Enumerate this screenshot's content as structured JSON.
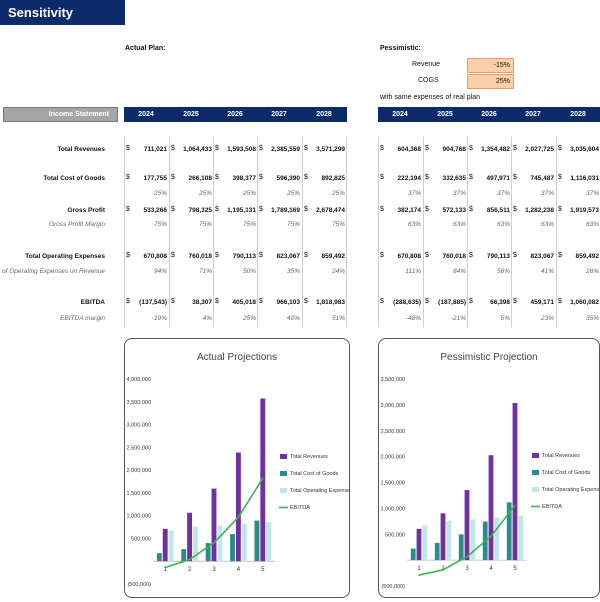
{
  "title": "Sensitivity Analysis",
  "actual_plan_label": "Actual Plan:",
  "pessimistic_label": "Pessimistic:",
  "revenue_label": "Revenue",
  "cogs_label": "COGS",
  "revenue_adj": "-15%",
  "cogs_adj": "25%",
  "same_expenses_note": "with same expenses of real plan",
  "income_statement_label": "Income Statement",
  "years": [
    "2024",
    "2025",
    "2026",
    "2027",
    "2028"
  ],
  "row_labels": {
    "total_revenues": "Total Revenues",
    "total_cogs": "Total Cost of Goods",
    "gross_profit": "Gross Profit",
    "gross_profit_margin": "Gross Profit Margin",
    "total_opex": "Total Operating Expenses",
    "opex_pct": "% of Operating Expenses on Revenue",
    "ebitda": "EBITDA",
    "ebitda_margin": "EBITDA margin"
  },
  "currency_symbol": "$",
  "actual": {
    "total_revenues": [
      "711,021",
      "1,064,433",
      "1,593,508",
      "2,385,559",
      "3,571,299"
    ],
    "total_cogs": [
      "177,755",
      "266,108",
      "398,377",
      "596,390",
      "892,825"
    ],
    "cogs_pct": [
      "25%",
      "25%",
      "25%",
      "25%",
      "25%"
    ],
    "gross_profit": [
      "533,266",
      "798,325",
      "1,195,131",
      "1,789,169",
      "2,678,474"
    ],
    "gross_profit_margin": [
      "75%",
      "75%",
      "75%",
      "75%",
      "75%"
    ],
    "total_opex": [
      "670,808",
      "760,018",
      "790,113",
      "823,067",
      "859,492"
    ],
    "opex_pct": [
      "94%",
      "71%",
      "50%",
      "35%",
      "24%"
    ],
    "ebitda": [
      "(137,543)",
      "38,307",
      "405,018",
      "966,103",
      "1,818,983"
    ],
    "ebitda_margin": [
      "-19%",
      "4%",
      "25%",
      "40%",
      "51%"
    ]
  },
  "pessimistic": {
    "total_revenues": [
      "604,368",
      "904,768",
      "1,354,482",
      "2,027,725",
      "3,035,604"
    ],
    "total_cogs": [
      "222,194",
      "332,635",
      "497,971",
      "745,487",
      "1,116,031"
    ],
    "cogs_pct": [
      "37%",
      "37%",
      "37%",
      "37%",
      "37%"
    ],
    "gross_profit": [
      "382,174",
      "572,133",
      "856,511",
      "1,282,238",
      "1,919,573"
    ],
    "gross_profit_margin": [
      "63%",
      "63%",
      "63%",
      "63%",
      "63%"
    ],
    "total_opex": [
      "670,808",
      "760,018",
      "790,113",
      "823,067",
      "859,492"
    ],
    "opex_pct": [
      "111%",
      "84%",
      "58%",
      "41%",
      "28%"
    ],
    "ebitda": [
      "(288,635)",
      "(187,885)",
      "66,398",
      "459,171",
      "1,060,082"
    ],
    "ebitda_margin": [
      "-48%",
      "-21%",
      "5%",
      "23%",
      "35%"
    ]
  },
  "colors": {
    "header_blue": "#0d2b6b",
    "revenues": "#7030a0",
    "cogs": "#2e8b8b",
    "opex": "#bfe6ea",
    "ebitda": "#3cb44b"
  },
  "chart_data": [
    {
      "type": "bar",
      "title": "Actual Projections",
      "categories": [
        "1",
        "2",
        "3",
        "4",
        "5"
      ],
      "ylim": [
        -500000,
        4000000
      ],
      "yticks": [
        "(500,000)",
        "",
        "500,000",
        "1,000,000",
        "1,500,000",
        "2,000,000",
        "2,500,000",
        "3,000,000",
        "3,500,000",
        "4,000,000"
      ],
      "series": [
        {
          "name": "Total Revenues",
          "kind": "bar",
          "values": [
            711021,
            1064433,
            1593508,
            2385559,
            3571299
          ]
        },
        {
          "name": "Total Cost of Goods",
          "kind": "bar",
          "values": [
            177755,
            266108,
            398377,
            596390,
            892825
          ]
        },
        {
          "name": "Total Operating Expenses",
          "kind": "bar",
          "values": [
            670808,
            760018,
            790113,
            823067,
            859492
          ]
        },
        {
          "name": "EBITDA",
          "kind": "line",
          "values": [
            -137543,
            38307,
            405018,
            966103,
            1818983
          ]
        }
      ],
      "legend": "right"
    },
    {
      "type": "bar",
      "title": "Pessimistic Projection",
      "categories": [
        "1",
        "2",
        "3",
        "4",
        "5"
      ],
      "ylim": [
        -500000,
        3500000
      ],
      "yticks": [
        "(500,000)",
        "",
        "500,000",
        "1,000,000",
        "1,500,000",
        "2,000,000",
        "2,500,000",
        "3,000,000",
        "3,500,000"
      ],
      "series": [
        {
          "name": "Total Revenues",
          "kind": "bar",
          "values": [
            604368,
            904768,
            1354482,
            2027725,
            3035604
          ]
        },
        {
          "name": "Total Cost of Goods",
          "kind": "bar",
          "values": [
            222194,
            332635,
            497971,
            745487,
            1116031
          ]
        },
        {
          "name": "Total Operating Expenses",
          "kind": "bar",
          "values": [
            670808,
            760018,
            790113,
            823067,
            859492
          ]
        },
        {
          "name": "EBITDA",
          "kind": "line",
          "values": [
            -288635,
            -187885,
            66398,
            459171,
            1060082
          ]
        }
      ],
      "legend": "right"
    }
  ]
}
